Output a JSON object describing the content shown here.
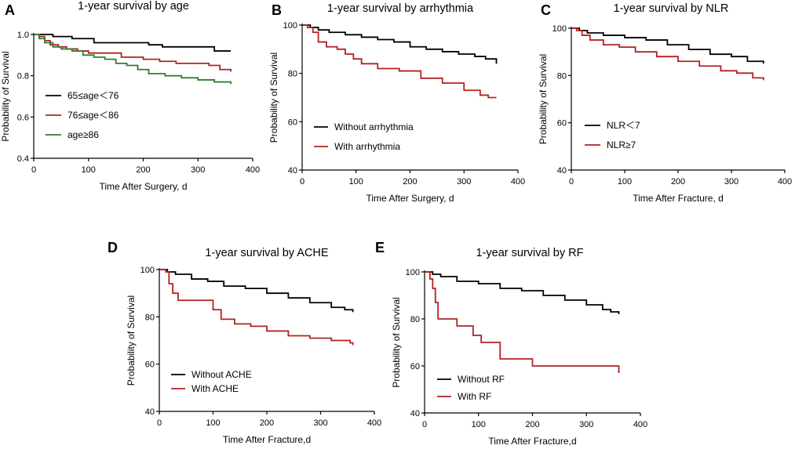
{
  "chart_data": [
    {
      "panel": "A",
      "type": "line",
      "title": "1-year survival by age",
      "xlabel": "Time After Surgery, d",
      "ylabel": "Probability of Survival",
      "xlim": [
        0,
        400
      ],
      "ylim": [
        0.4,
        1.0
      ],
      "xticks": [
        0,
        100,
        200,
        300,
        400
      ],
      "yticks": [
        0.4,
        0.6,
        0.8,
        1.0
      ],
      "ytick_labels": [
        "0.4",
        "0.6",
        "0.8",
        "1.0"
      ],
      "series": [
        {
          "name": "65≤age＜76",
          "color": "#000000",
          "points": [
            [
              0,
              1.0
            ],
            [
              15,
              1.0
            ],
            [
              35,
              0.99
            ],
            [
              70,
              0.98
            ],
            [
              110,
              0.96
            ],
            [
              160,
              0.96
            ],
            [
              210,
              0.95
            ],
            [
              235,
              0.94
            ],
            [
              280,
              0.94
            ],
            [
              330,
              0.92
            ],
            [
              360,
              0.92
            ]
          ]
        },
        {
          "name": "76≤age＜86",
          "color": "#b22222",
          "points": [
            [
              0,
              1.0
            ],
            [
              10,
              0.99
            ],
            [
              20,
              0.97
            ],
            [
              30,
              0.95
            ],
            [
              45,
              0.94
            ],
            [
              60,
              0.93
            ],
            [
              80,
              0.92
            ],
            [
              100,
              0.91
            ],
            [
              130,
              0.91
            ],
            [
              160,
              0.89
            ],
            [
              200,
              0.88
            ],
            [
              230,
              0.87
            ],
            [
              260,
              0.86
            ],
            [
              300,
              0.86
            ],
            [
              320,
              0.85
            ],
            [
              340,
              0.83
            ],
            [
              360,
              0.82
            ]
          ]
        },
        {
          "name": "age≥86",
          "color": "#2e7d32",
          "points": [
            [
              0,
              1.0
            ],
            [
              10,
              0.98
            ],
            [
              20,
              0.96
            ],
            [
              35,
              0.94
            ],
            [
              50,
              0.93
            ],
            [
              70,
              0.92
            ],
            [
              90,
              0.9
            ],
            [
              110,
              0.89
            ],
            [
              130,
              0.88
            ],
            [
              150,
              0.86
            ],
            [
              170,
              0.85
            ],
            [
              190,
              0.83
            ],
            [
              210,
              0.81
            ],
            [
              240,
              0.8
            ],
            [
              270,
              0.79
            ],
            [
              300,
              0.78
            ],
            [
              330,
              0.77
            ],
            [
              360,
              0.76
            ]
          ]
        }
      ]
    },
    {
      "panel": "B",
      "type": "line",
      "title": "1-year survival by arrhythmia",
      "xlabel": "Time After Surgery, d",
      "ylabel": "Probability of Survival",
      "xlim": [
        0,
        400
      ],
      "ylim": [
        40,
        100
      ],
      "xticks": [
        0,
        100,
        200,
        300,
        400
      ],
      "yticks": [
        40,
        60,
        80,
        100
      ],
      "ytick_labels": [
        "40",
        "60",
        "80",
        "100"
      ],
      "series": [
        {
          "name": "Without arrhythmia",
          "color": "#000000",
          "points": [
            [
              0,
              100
            ],
            [
              15,
              99
            ],
            [
              30,
              98
            ],
            [
              50,
              97
            ],
            [
              80,
              96
            ],
            [
              110,
              95
            ],
            [
              140,
              94
            ],
            [
              170,
              93
            ],
            [
              200,
              91
            ],
            [
              230,
              90
            ],
            [
              260,
              89
            ],
            [
              290,
              88
            ],
            [
              320,
              87
            ],
            [
              340,
              86
            ],
            [
              360,
              84
            ]
          ]
        },
        {
          "name": "With arrhythmia",
          "color": "#b22222",
          "points": [
            [
              0,
              100
            ],
            [
              10,
              99
            ],
            [
              20,
              97
            ],
            [
              30,
              93
            ],
            [
              45,
              91
            ],
            [
              65,
              90
            ],
            [
              80,
              88
            ],
            [
              95,
              86
            ],
            [
              110,
              84
            ],
            [
              140,
              82
            ],
            [
              180,
              81
            ],
            [
              220,
              78
            ],
            [
              260,
              76
            ],
            [
              300,
              73
            ],
            [
              330,
              71
            ],
            [
              345,
              70
            ],
            [
              360,
              70
            ]
          ]
        }
      ]
    },
    {
      "panel": "C",
      "type": "line",
      "title": "1-year survival by NLR",
      "xlabel": "Time After Fracture, d",
      "ylabel": "Probability of Survival",
      "xlim": [
        0,
        400
      ],
      "ylim": [
        40,
        100
      ],
      "xticks": [
        0,
        100,
        200,
        300,
        400
      ],
      "yticks": [
        40,
        60,
        80,
        100
      ],
      "ytick_labels": [
        "40",
        "60",
        "80",
        "100"
      ],
      "series": [
        {
          "name": "NLR＜7",
          "color": "#000000",
          "points": [
            [
              0,
              100
            ],
            [
              15,
              99
            ],
            [
              30,
              98
            ],
            [
              60,
              97
            ],
            [
              100,
              96
            ],
            [
              140,
              95
            ],
            [
              180,
              93
            ],
            [
              220,
              91
            ],
            [
              260,
              89
            ],
            [
              300,
              88
            ],
            [
              330,
              86
            ],
            [
              360,
              85
            ]
          ]
        },
        {
          "name": "NLR≥7",
          "color": "#b22222",
          "points": [
            [
              0,
              100
            ],
            [
              10,
              99
            ],
            [
              20,
              97
            ],
            [
              35,
              95
            ],
            [
              60,
              93
            ],
            [
              90,
              92
            ],
            [
              120,
              90
            ],
            [
              160,
              88
            ],
            [
              200,
              86
            ],
            [
              240,
              84
            ],
            [
              280,
              82
            ],
            [
              310,
              81
            ],
            [
              340,
              79
            ],
            [
              360,
              78
            ]
          ]
        }
      ]
    },
    {
      "panel": "D",
      "type": "line",
      "title": "1-year survival by ACHE",
      "xlabel": "Time After Fracture,d",
      "ylabel": "Probability of Survival",
      "xlim": [
        0,
        400
      ],
      "ylim": [
        40,
        100
      ],
      "xticks": [
        0,
        100,
        200,
        300,
        400
      ],
      "yticks": [
        40,
        60,
        80,
        100
      ],
      "ytick_labels": [
        "40",
        "60",
        "80",
        "100"
      ],
      "series": [
        {
          "name": "Without ACHE",
          "color": "#000000",
          "points": [
            [
              0,
              100
            ],
            [
              15,
              99
            ],
            [
              30,
              98
            ],
            [
              60,
              96
            ],
            [
              90,
              95
            ],
            [
              120,
              93
            ],
            [
              160,
              92
            ],
            [
              200,
              90
            ],
            [
              240,
              88
            ],
            [
              280,
              86
            ],
            [
              320,
              84
            ],
            [
              345,
              83
            ],
            [
              360,
              82
            ]
          ]
        },
        {
          "name": "With ACHE",
          "color": "#b22222",
          "points": [
            [
              0,
              100
            ],
            [
              12,
              99
            ],
            [
              18,
              94
            ],
            [
              25,
              90
            ],
            [
              35,
              87
            ],
            [
              60,
              87
            ],
            [
              90,
              87
            ],
            [
              100,
              83
            ],
            [
              115,
              79
            ],
            [
              140,
              77
            ],
            [
              170,
              76
            ],
            [
              200,
              74
            ],
            [
              240,
              72
            ],
            [
              280,
              71
            ],
            [
              320,
              70
            ],
            [
              355,
              69
            ],
            [
              360,
              68
            ]
          ]
        }
      ]
    },
    {
      "panel": "E",
      "type": "line",
      "title": "1-year survival by RF",
      "xlabel": "Time After Fracture,d",
      "ylabel": "Probability of Survival",
      "xlim": [
        0,
        400
      ],
      "ylim": [
        40,
        100
      ],
      "xticks": [
        0,
        100,
        200,
        300,
        400
      ],
      "yticks": [
        40,
        60,
        80,
        100
      ],
      "ytick_labels": [
        "40",
        "60",
        "80",
        "100"
      ],
      "series": [
        {
          "name": "Without RF",
          "color": "#000000",
          "points": [
            [
              0,
              100
            ],
            [
              15,
              99
            ],
            [
              30,
              98
            ],
            [
              60,
              96
            ],
            [
              100,
              95
            ],
            [
              140,
              93
            ],
            [
              180,
              92
            ],
            [
              220,
              90
            ],
            [
              260,
              88
            ],
            [
              300,
              86
            ],
            [
              330,
              84
            ],
            [
              345,
              83
            ],
            [
              360,
              82
            ]
          ]
        },
        {
          "name": "With RF",
          "color": "#b22222",
          "points": [
            [
              0,
              100
            ],
            [
              10,
              97
            ],
            [
              15,
              93
            ],
            [
              20,
              87
            ],
            [
              25,
              80
            ],
            [
              60,
              80
            ],
            [
              60,
              77
            ],
            [
              90,
              77
            ],
            [
              90,
              73
            ],
            [
              105,
              73
            ],
            [
              105,
              70
            ],
            [
              140,
              70
            ],
            [
              140,
              63
            ],
            [
              200,
              63
            ],
            [
              200,
              60
            ],
            [
              355,
              60
            ],
            [
              360,
              57
            ]
          ]
        }
      ]
    }
  ]
}
